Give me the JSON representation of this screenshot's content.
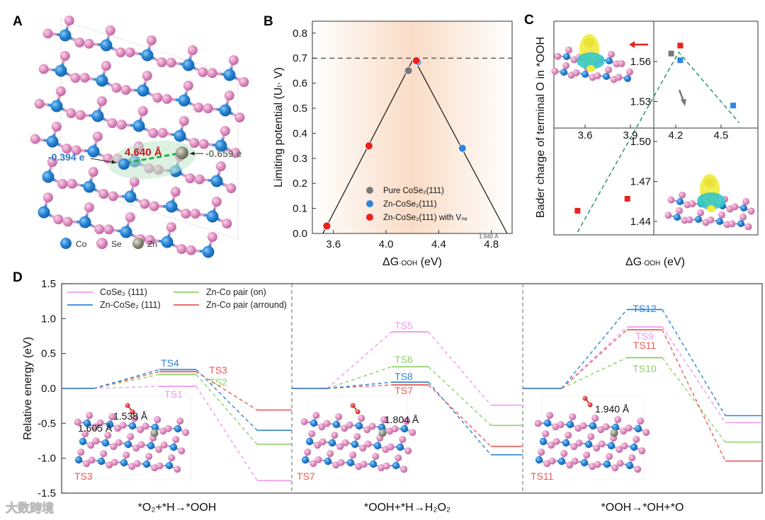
{
  "panels": {
    "a": "A",
    "b": "B",
    "c": "C",
    "d": "D"
  },
  "panel_a": {
    "charge_co": "-0.394 e",
    "charge_zn": "-0.659 e",
    "distance": "4.640 Å",
    "legend": [
      {
        "label": "Co",
        "color": "#2a7fd0"
      },
      {
        "label": "Se",
        "color": "#d77fb3"
      },
      {
        "label": "Zn",
        "color": "#8a8a7c"
      }
    ]
  },
  "chart_data": [
    {
      "id": "B",
      "type": "scatter",
      "title": "",
      "ylabel": "Limiting potential (Uₗ· V)",
      "xlabel": {
        "main": "ΔG",
        "sub": "·OOH",
        "unit": " (eV)"
      },
      "xlim": [
        3.44,
        4.96
      ],
      "ylim": [
        0.0,
        0.85
      ],
      "xticks": [
        "3.6",
        "4.0",
        "4.4",
        "4.8"
      ],
      "xtick_values": [
        3.6,
        4.0,
        4.4,
        4.8
      ],
      "yticks": [
        "0.0",
        "0.1",
        "0.2",
        "0.3",
        "0.4",
        "0.5",
        "0.6",
        "0.7",
        "0.8"
      ],
      "ytick_values": [
        0,
        0.1,
        0.2,
        0.3,
        0.4,
        0.5,
        0.6,
        0.7,
        0.8
      ],
      "reference_line": 0.7,
      "volcano": [
        [
          3.52,
          0.0
        ],
        [
          4.21,
          0.7
        ],
        [
          4.92,
          0.0
        ]
      ],
      "legend_position": "bottom-center",
      "series": [
        {
          "name": "Pure CoSe₂(111)",
          "color": "#7a7a7a",
          "points": [
            [
              4.17,
              0.65
            ]
          ]
        },
        {
          "name": "Zn-CoSe₂(111)",
          "color": "#2f86e0",
          "points": [
            [
              4.24,
              0.685
            ],
            [
              4.58,
              0.34
            ]
          ]
        },
        {
          "name": "Zn-CoSe₂(111) with Vₛₑ",
          "color": "#e8231f",
          "points": [
            [
              3.55,
              0.03
            ],
            [
              3.87,
              0.35
            ],
            [
              4.23,
              0.69
            ]
          ]
        }
      ],
      "annotation": "1.940 Å"
    },
    {
      "id": "C",
      "type": "scatter",
      "ylabel": "Bader charge of terminal O in *OOH",
      "xlabel": {
        "main": "ΔG",
        "sub": "·OOH",
        "unit": " (eV)"
      },
      "xticks": [
        "3.6",
        "3.9",
        "4.2",
        "4.5"
      ],
      "xtick_values": [
        3.6,
        3.9,
        4.2,
        4.5
      ],
      "yticks": [
        "1.56",
        "1.53",
        "1.50",
        "1.47",
        "1.44"
      ],
      "ytick_values": [
        1.56,
        1.53,
        1.5,
        1.47,
        1.44
      ],
      "fit_line": [
        [
          3.55,
          1.432
        ],
        [
          4.22,
          1.567
        ],
        [
          4.62,
          1.514
        ]
      ],
      "series": [
        {
          "name": "Pure CoSe₂(111)",
          "color": "#7a7a7a",
          "points": [
            [
              4.17,
              1.566
            ]
          ]
        },
        {
          "name": "Zn-CoSe₂(111)",
          "color": "#2f86e0",
          "points": [
            [
              4.23,
              1.561
            ],
            [
              4.58,
              1.527
            ]
          ]
        },
        {
          "name": "Zn-CoSe₂(111) with Vₛₑ",
          "color": "#e8231f",
          "points": [
            [
              4.23,
              1.572
            ],
            [
              3.55,
              1.448
            ],
            [
              3.88,
              1.457
            ]
          ]
        }
      ]
    },
    {
      "id": "D",
      "type": "line",
      "ylabel": "Relative energy (eV)",
      "ylim": [
        -1.5,
        1.5
      ],
      "yticks": [
        "1.5",
        "1.0",
        "0.5",
        "0.0",
        "-0.5",
        "-1.0",
        "-1.5"
      ],
      "ytick_values": [
        1.5,
        1.0,
        0.5,
        0.0,
        -0.5,
        -1.0,
        -1.5
      ],
      "legend_position": "top-left",
      "series_styles": [
        {
          "name": "CoSe₂ (111)",
          "color": "#f09af0"
        },
        {
          "name": "Zn-CoSe₂ (111)",
          "color": "#2f86d6"
        },
        {
          "name": "Zn-Co pair (on)",
          "color": "#8fcf6a"
        },
        {
          "name": "Zn-Co pair (arround)",
          "color": "#ee5a55"
        }
      ],
      "steps": [
        {
          "label": "*O₂+*H→*OOH",
          "inset_label": "TS3",
          "inset_distances": [
            "1.538 Å",
            "1.605 Å"
          ],
          "paths": [
            {
              "series": 0,
              "initial": 0.0,
              "ts": 0.03,
              "final": -1.32,
              "ts_label": "TS1"
            },
            {
              "series": 1,
              "initial": 0.0,
              "ts": 0.27,
              "final": -0.6,
              "ts_label": "TS4"
            },
            {
              "series": 2,
              "initial": 0.0,
              "ts": 0.2,
              "final": -0.8,
              "ts_label": "TS2"
            },
            {
              "series": 3,
              "initial": 0.0,
              "ts": 0.24,
              "final": -0.31,
              "ts_label": "TS3"
            }
          ]
        },
        {
          "label": "*OOH+*H→H₂O₂",
          "inset_label": "TS7",
          "inset_distances": [
            "1.804 Å"
          ],
          "paths": [
            {
              "series": 0,
              "initial": 0.0,
              "ts": 0.81,
              "final": -0.24,
              "ts_label": "TS5"
            },
            {
              "series": 1,
              "initial": 0.0,
              "ts": 0.09,
              "final": -0.95,
              "ts_label": "TS8"
            },
            {
              "series": 2,
              "initial": 0.0,
              "ts": 0.31,
              "final": -0.53,
              "ts_label": "TS6"
            },
            {
              "series": 3,
              "initial": 0.0,
              "ts": 0.05,
              "final": -0.83,
              "ts_label": "TS7"
            }
          ]
        },
        {
          "label": "*OOH→*OH+*O",
          "inset_label": "TS11",
          "inset_distances": [
            "1.940 Å"
          ],
          "paths": [
            {
              "series": 0,
              "initial": 0.0,
              "ts": 0.88,
              "final": -0.49,
              "ts_label": "TS9"
            },
            {
              "series": 1,
              "initial": 0.0,
              "ts": 1.13,
              "final": -0.39,
              "ts_label": "TS12"
            },
            {
              "series": 2,
              "initial": 0.0,
              "ts": 0.44,
              "final": -0.77,
              "ts_label": "TS10"
            },
            {
              "series": 3,
              "initial": 0.0,
              "ts": 0.84,
              "final": -1.04,
              "ts_label": "TS11"
            }
          ]
        }
      ]
    }
  ],
  "watermark": "大数跨境"
}
